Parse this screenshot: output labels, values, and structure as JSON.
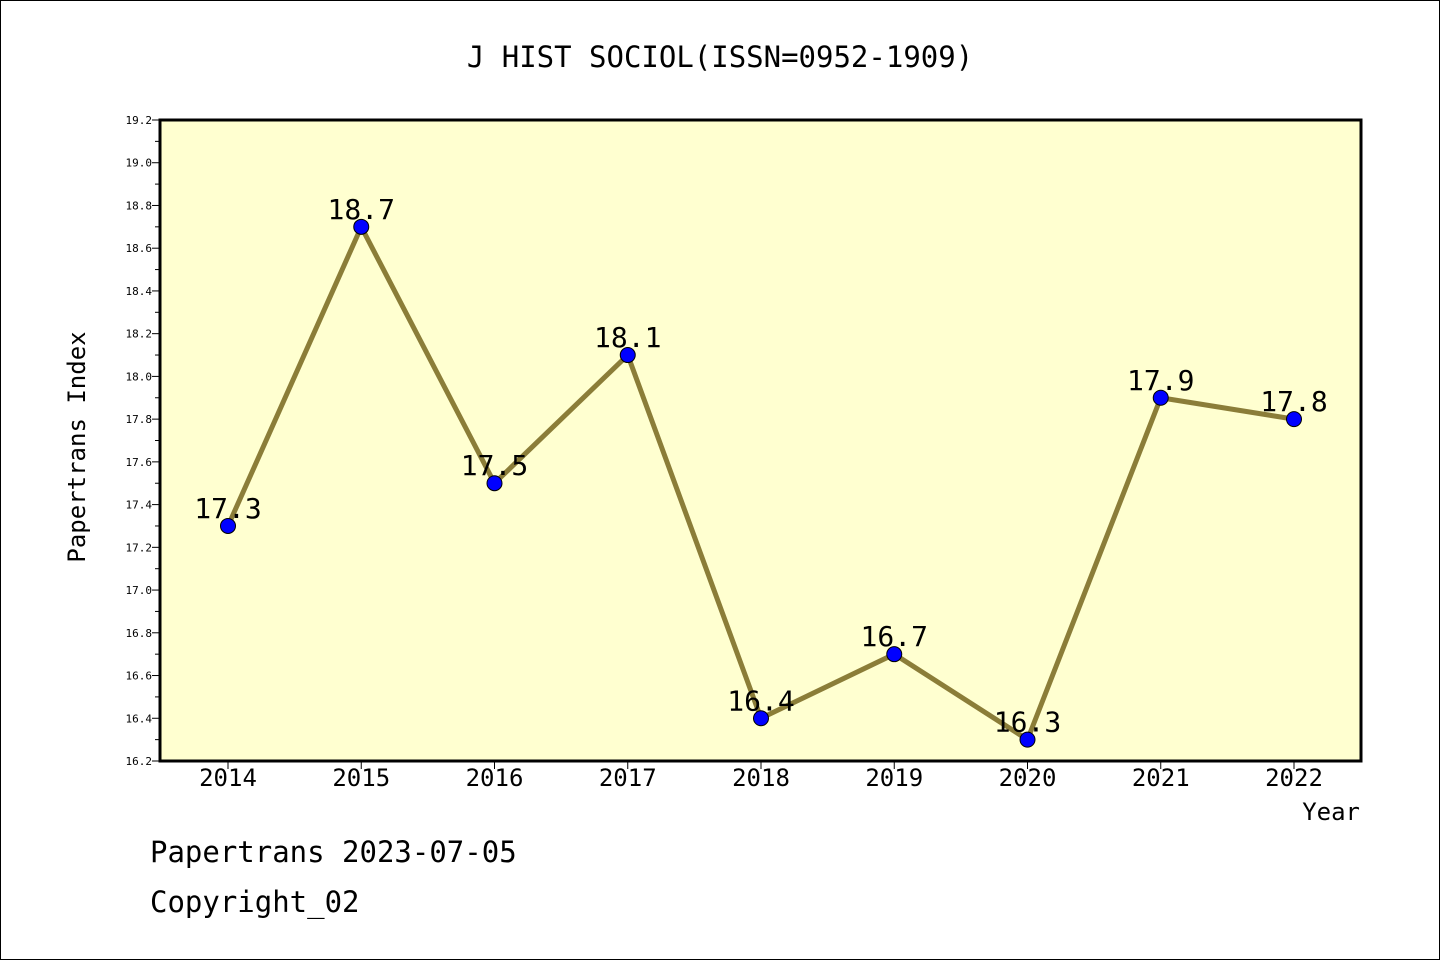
{
  "chart_data": {
    "type": "line",
    "title": "J HIST SOCIOL(ISSN=0952-1909)",
    "xlabel": "Year",
    "ylabel": "Papertrans Index",
    "categories": [
      "2014",
      "2015",
      "2016",
      "2017",
      "2018",
      "2019",
      "2020",
      "2021",
      "2022"
    ],
    "series": [
      {
        "values": [
          17.3,
          18.7,
          17.5,
          18.1,
          16.4,
          16.7,
          16.3,
          17.9,
          17.8
        ]
      }
    ],
    "data_labels": [
      "17.3",
      "18.7",
      "17.5",
      "18.1",
      "16.4",
      "16.7",
      "16.3",
      "17.9",
      "17.8"
    ],
    "ylim": [
      16.2,
      19.2
    ],
    "yticks": [
      "16.2",
      "16.4",
      "16.6",
      "16.8",
      "17.0",
      "17.2",
      "17.4",
      "17.6",
      "17.8",
      "18.0",
      "18.2",
      "18.4",
      "18.6",
      "18.8",
      "19.0",
      "19.2"
    ],
    "grid": false,
    "colors": {
      "plot_background": "#ffffd0",
      "line": "#8b7d38",
      "marker": "#0000ff"
    }
  },
  "footer": {
    "line1": "Papertrans 2023-07-05",
    "line2": "Copyright_02"
  }
}
